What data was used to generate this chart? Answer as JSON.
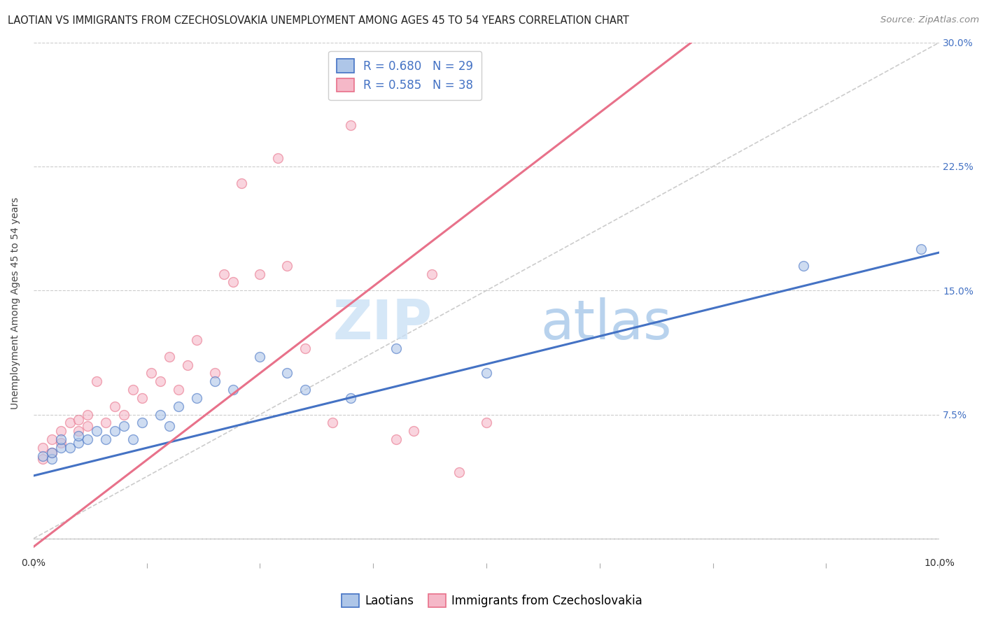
{
  "title": "LAOTIAN VS IMMIGRANTS FROM CZECHOSLOVAKIA UNEMPLOYMENT AMONG AGES 45 TO 54 YEARS CORRELATION CHART",
  "source": "Source: ZipAtlas.com",
  "ylabel": "Unemployment Among Ages 45 to 54 years",
  "watermark_zip": "ZIP",
  "watermark_atlas": "atlas",
  "blue_R": "R = 0.680",
  "blue_N": "N = 29",
  "pink_R": "R = 0.585",
  "pink_N": "N = 38",
  "legend_label_blue": "Laotians",
  "legend_label_pink": "Immigrants from Czechoslovakia",
  "blue_face_color": "#aec6e8",
  "pink_face_color": "#f5b8c8",
  "blue_edge_color": "#4472c4",
  "pink_edge_color": "#e8718a",
  "blue_line_color": "#4472c4",
  "pink_line_color": "#e8718a",
  "diag_line_color": "#cccccc",
  "xmin": 0.0,
  "xmax": 0.1,
  "ymin": -0.015,
  "ymax": 0.3,
  "yticks": [
    0.0,
    0.075,
    0.15,
    0.225,
    0.3
  ],
  "ytick_labels": [
    "",
    "7.5%",
    "15.0%",
    "22.5%",
    "30.0%"
  ],
  "blue_intercept": 0.038,
  "blue_slope": 1.35,
  "pink_intercept": -0.005,
  "pink_slope": 4.2,
  "blue_scatter_x": [
    0.001,
    0.002,
    0.002,
    0.003,
    0.003,
    0.004,
    0.005,
    0.005,
    0.006,
    0.007,
    0.008,
    0.009,
    0.01,
    0.011,
    0.012,
    0.014,
    0.015,
    0.016,
    0.018,
    0.02,
    0.022,
    0.025,
    0.028,
    0.03,
    0.035,
    0.04,
    0.05,
    0.085,
    0.098
  ],
  "blue_scatter_y": [
    0.05,
    0.048,
    0.052,
    0.055,
    0.06,
    0.055,
    0.058,
    0.062,
    0.06,
    0.065,
    0.06,
    0.065,
    0.068,
    0.06,
    0.07,
    0.075,
    0.068,
    0.08,
    0.085,
    0.095,
    0.09,
    0.11,
    0.1,
    0.09,
    0.085,
    0.115,
    0.1,
    0.165,
    0.175
  ],
  "pink_scatter_x": [
    0.001,
    0.001,
    0.002,
    0.002,
    0.003,
    0.003,
    0.004,
    0.005,
    0.005,
    0.006,
    0.006,
    0.007,
    0.008,
    0.009,
    0.01,
    0.011,
    0.012,
    0.013,
    0.014,
    0.015,
    0.016,
    0.017,
    0.018,
    0.02,
    0.021,
    0.022,
    0.023,
    0.025,
    0.027,
    0.028,
    0.03,
    0.033,
    0.035,
    0.04,
    0.042,
    0.044,
    0.047,
    0.05
  ],
  "pink_scatter_y": [
    0.048,
    0.055,
    0.052,
    0.06,
    0.058,
    0.065,
    0.07,
    0.065,
    0.072,
    0.068,
    0.075,
    0.095,
    0.07,
    0.08,
    0.075,
    0.09,
    0.085,
    0.1,
    0.095,
    0.11,
    0.09,
    0.105,
    0.12,
    0.1,
    0.16,
    0.155,
    0.215,
    0.16,
    0.23,
    0.165,
    0.115,
    0.07,
    0.25,
    0.06,
    0.065,
    0.16,
    0.04,
    0.07
  ],
  "title_fontsize": 10.5,
  "axis_label_fontsize": 10,
  "tick_fontsize": 10,
  "legend_fontsize": 12,
  "source_fontsize": 9.5,
  "scatter_size": 100,
  "scatter_alpha": 0.6,
  "scatter_linewidth": 1.0,
  "line_linewidth": 2.2,
  "grid_color": "#cccccc",
  "grid_style": "--",
  "background_color": "#ffffff",
  "plot_bg_color": "#ffffff"
}
